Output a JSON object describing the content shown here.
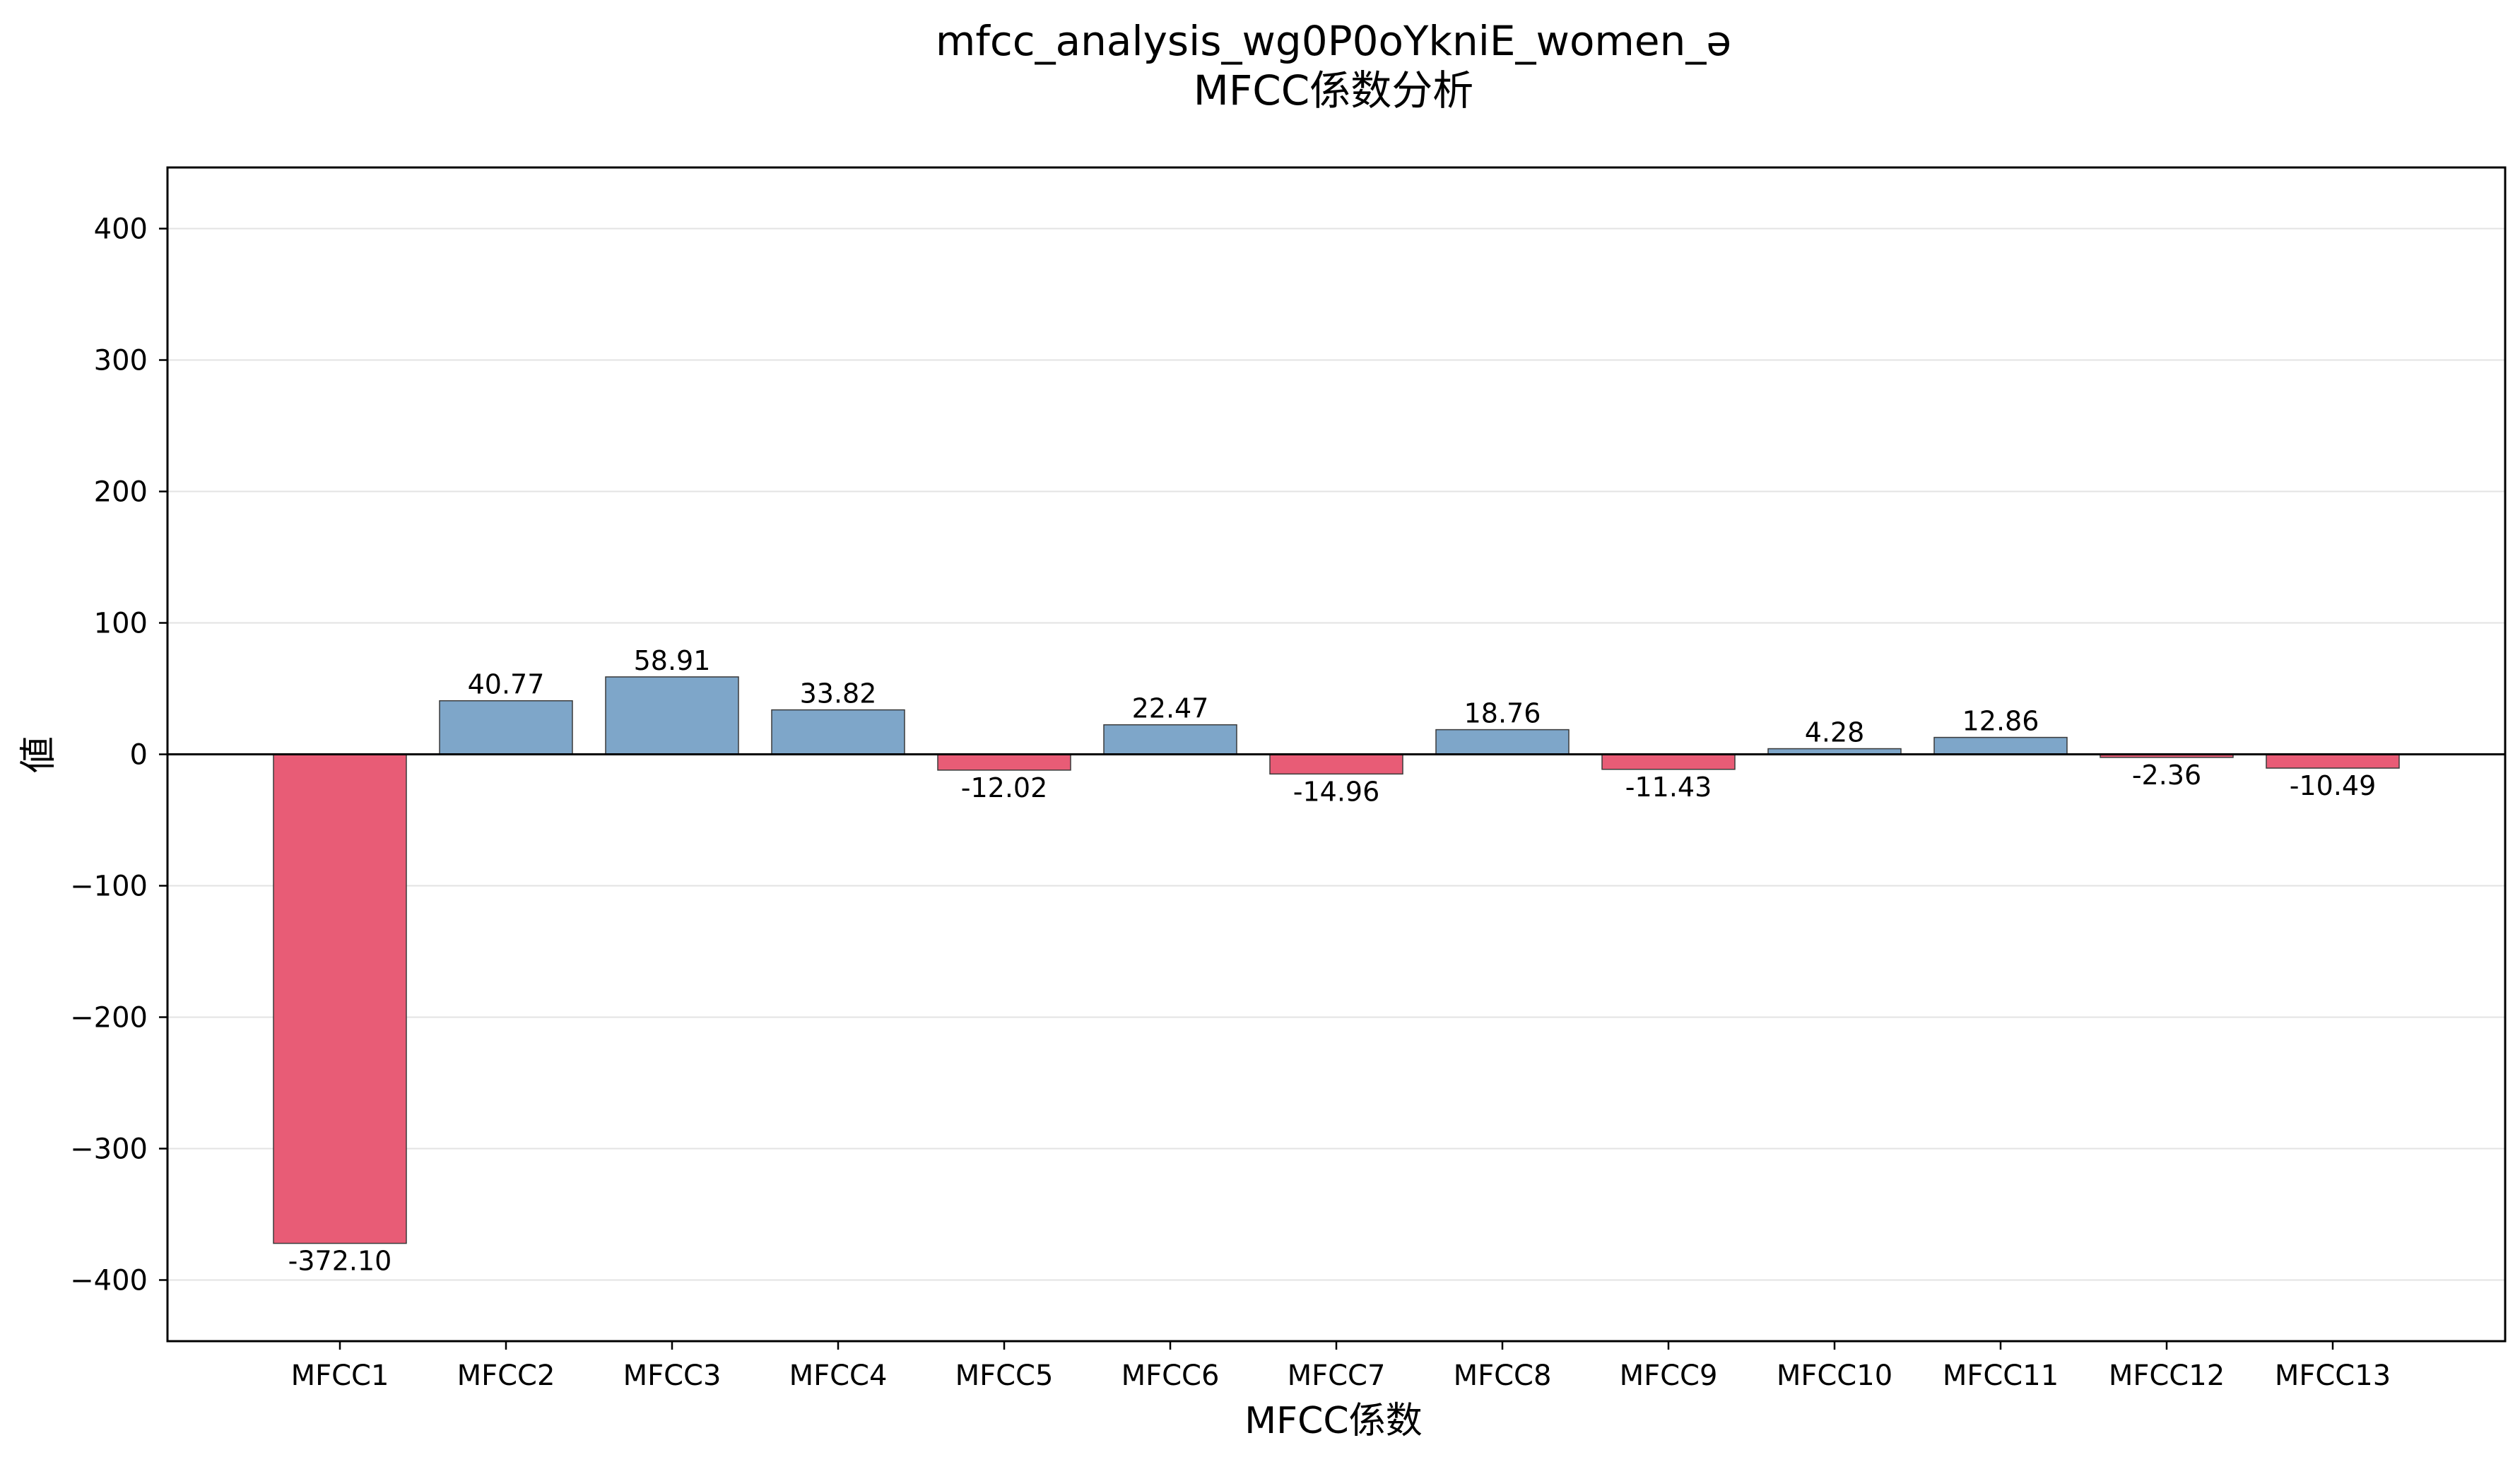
{
  "chart_data": {
    "type": "bar",
    "title": "mfcc_analysis_wg0P0oYkniE_women_ə",
    "subtitle": "MFCC係数分析",
    "xlabel": "MFCC係数",
    "ylabel": "値",
    "categories": [
      "MFCC1",
      "MFCC2",
      "MFCC3",
      "MFCC4",
      "MFCC5",
      "MFCC6",
      "MFCC7",
      "MFCC8",
      "MFCC9",
      "MFCC10",
      "MFCC11",
      "MFCC12",
      "MFCC13"
    ],
    "values": [
      -372.1,
      40.77,
      58.91,
      33.82,
      -12.02,
      22.47,
      -14.96,
      18.76,
      -11.43,
      4.28,
      12.86,
      -2.36,
      -10.49
    ],
    "value_labels": [
      "-372.10",
      "40.77",
      "58.91",
      "33.82",
      "-12.02",
      "22.47",
      "-14.96",
      "18.76",
      "-11.43",
      "4.28",
      "12.86",
      "-2.36",
      "-10.49"
    ],
    "ylim": [
      -446.52,
      446.52
    ],
    "yticks": [
      -400,
      -300,
      -200,
      -100,
      0,
      100,
      200,
      300,
      400
    ],
    "ytick_labels": [
      "−400",
      "−300",
      "−200",
      "−100",
      "0",
      "100",
      "200",
      "300",
      "400"
    ],
    "grid": "y",
    "colors": {
      "positive": "#7ea6c9",
      "negative": "#e85c76",
      "edge": "#3a3a3a",
      "grid": "#e3e3e3",
      "zero_line": "#000000"
    }
  }
}
